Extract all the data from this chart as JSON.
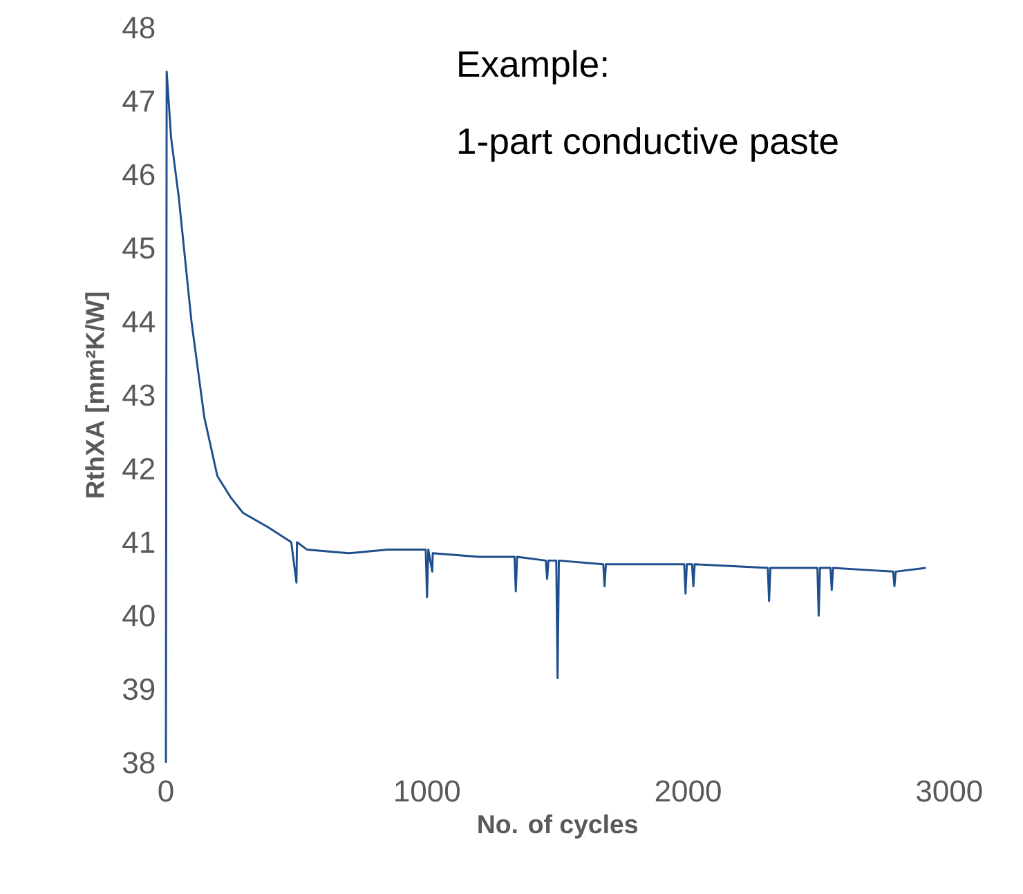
{
  "chart_data": {
    "type": "line",
    "xlabel": "No. of cycles",
    "ylabel": "RthXA [mm²K/W]",
    "annotations": [
      "Example:",
      "1-part conductive paste"
    ],
    "xlim": [
      0,
      3000
    ],
    "ylim": [
      38,
      48
    ],
    "xticks": [
      0,
      1000,
      2000,
      3000
    ],
    "yticks": [
      38,
      39,
      40,
      41,
      42,
      43,
      44,
      45,
      46,
      47,
      48
    ],
    "grid": false,
    "marker": "none",
    "line_style": "solid",
    "series": [
      {
        "color": "#1f4e8c",
        "x": [
          0,
          3,
          20,
          49,
          98,
          147,
          197,
          250,
          295,
          393,
          480,
          500,
          502,
          540,
          700,
          850,
          995,
          1000,
          1005,
          1020,
          1022,
          1200,
          1335,
          1340,
          1345,
          1455,
          1460,
          1465,
          1495,
          1500,
          1505,
          1675,
          1680,
          1685,
          1985,
          1990,
          1995,
          2015,
          2020,
          2025,
          2305,
          2310,
          2315,
          2495,
          2500,
          2505,
          2545,
          2550,
          2555,
          2785,
          2790,
          2795,
          2910
        ],
        "values": [
          38,
          47.4,
          46.5,
          45.7,
          44.0,
          42.7,
          41.9,
          41.6,
          41.4,
          41.2,
          41.0,
          40.45,
          41.0,
          40.9,
          40.85,
          40.9,
          40.9,
          40.25,
          40.9,
          40.6,
          40.85,
          40.8,
          40.8,
          40.33,
          40.8,
          40.75,
          40.5,
          40.75,
          40.75,
          39.15,
          40.75,
          40.7,
          40.4,
          40.7,
          40.7,
          40.3,
          40.7,
          40.7,
          40.4,
          40.7,
          40.65,
          40.2,
          40.65,
          40.65,
          40.0,
          40.65,
          40.65,
          40.35,
          40.65,
          40.6,
          40.4,
          40.6,
          40.65
        ]
      }
    ]
  }
}
